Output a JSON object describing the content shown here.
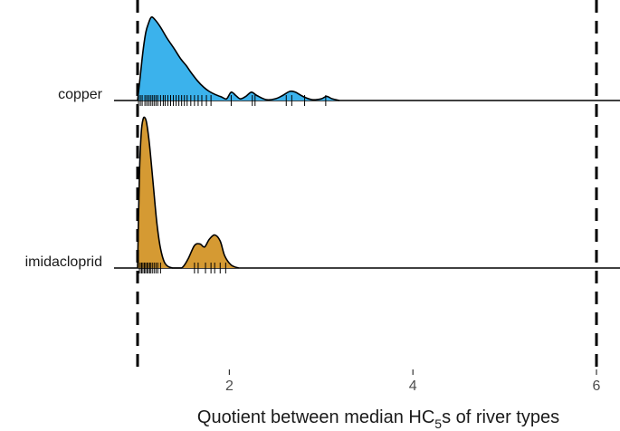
{
  "chart_data": {
    "type": "ridgeline",
    "xlabel": {
      "main": "Quotient between median HC",
      "sub": "5",
      "tail": "s of river types"
    },
    "xlim": [
      0.97,
      6.05
    ],
    "x_ticks": [
      2,
      4,
      6
    ],
    "reference_lines": [
      1,
      6
    ],
    "grid": false,
    "legend": "none",
    "series": [
      {
        "name": "copper",
        "color": "#3bb2ec",
        "density": [
          [
            1.0,
            0.0
          ],
          [
            1.03,
            0.3
          ],
          [
            1.06,
            0.6
          ],
          [
            1.09,
            0.82
          ],
          [
            1.12,
            0.93
          ],
          [
            1.15,
            1.0
          ],
          [
            1.19,
            0.97
          ],
          [
            1.25,
            0.88
          ],
          [
            1.32,
            0.75
          ],
          [
            1.4,
            0.62
          ],
          [
            1.47,
            0.5
          ],
          [
            1.53,
            0.42
          ],
          [
            1.58,
            0.34
          ],
          [
            1.65,
            0.24
          ],
          [
            1.72,
            0.16
          ],
          [
            1.78,
            0.11
          ],
          [
            1.85,
            0.07
          ],
          [
            1.92,
            0.04
          ],
          [
            1.97,
            0.02
          ],
          [
            2.02,
            0.1
          ],
          [
            2.07,
            0.06
          ],
          [
            2.12,
            0.02
          ],
          [
            2.18,
            0.05
          ],
          [
            2.24,
            0.1
          ],
          [
            2.3,
            0.06
          ],
          [
            2.4,
            0.01
          ],
          [
            2.5,
            0.02
          ],
          [
            2.58,
            0.06
          ],
          [
            2.66,
            0.11
          ],
          [
            2.72,
            0.1
          ],
          [
            2.8,
            0.05
          ],
          [
            2.9,
            0.01
          ],
          [
            3.0,
            0.02
          ],
          [
            3.06,
            0.05
          ],
          [
            3.12,
            0.02
          ],
          [
            3.2,
            0.0
          ]
        ],
        "rug": [
          1.01,
          1.03,
          1.05,
          1.08,
          1.1,
          1.12,
          1.14,
          1.16,
          1.18,
          1.2,
          1.22,
          1.25,
          1.28,
          1.3,
          1.33,
          1.36,
          1.39,
          1.42,
          1.45,
          1.48,
          1.51,
          1.54,
          1.58,
          1.62,
          1.66,
          1.7,
          1.75,
          1.8,
          2.02,
          2.25,
          2.28,
          2.62,
          2.68,
          2.82,
          3.05
        ]
      },
      {
        "name": "imidacloprid",
        "color": "#d59a33",
        "density": [
          [
            1.0,
            0.0
          ],
          [
            1.02,
            0.62
          ],
          [
            1.04,
            0.9
          ],
          [
            1.06,
            0.99
          ],
          [
            1.08,
            1.0
          ],
          [
            1.1,
            0.96
          ],
          [
            1.13,
            0.82
          ],
          [
            1.17,
            0.56
          ],
          [
            1.21,
            0.3
          ],
          [
            1.25,
            0.13
          ],
          [
            1.3,
            0.03
          ],
          [
            1.38,
            0.0
          ],
          [
            1.48,
            0.0
          ],
          [
            1.55,
            0.06
          ],
          [
            1.62,
            0.15
          ],
          [
            1.68,
            0.16
          ],
          [
            1.73,
            0.14
          ],
          [
            1.78,
            0.19
          ],
          [
            1.84,
            0.22
          ],
          [
            1.9,
            0.18
          ],
          [
            1.95,
            0.08
          ],
          [
            2.02,
            0.02
          ],
          [
            2.1,
            0.0
          ]
        ],
        "rug": [
          1.02,
          1.04,
          1.05,
          1.07,
          1.08,
          1.1,
          1.11,
          1.13,
          1.14,
          1.16,
          1.18,
          1.2,
          1.22,
          1.25,
          1.62,
          1.66,
          1.74,
          1.8,
          1.84,
          1.9,
          1.96
        ]
      }
    ]
  }
}
